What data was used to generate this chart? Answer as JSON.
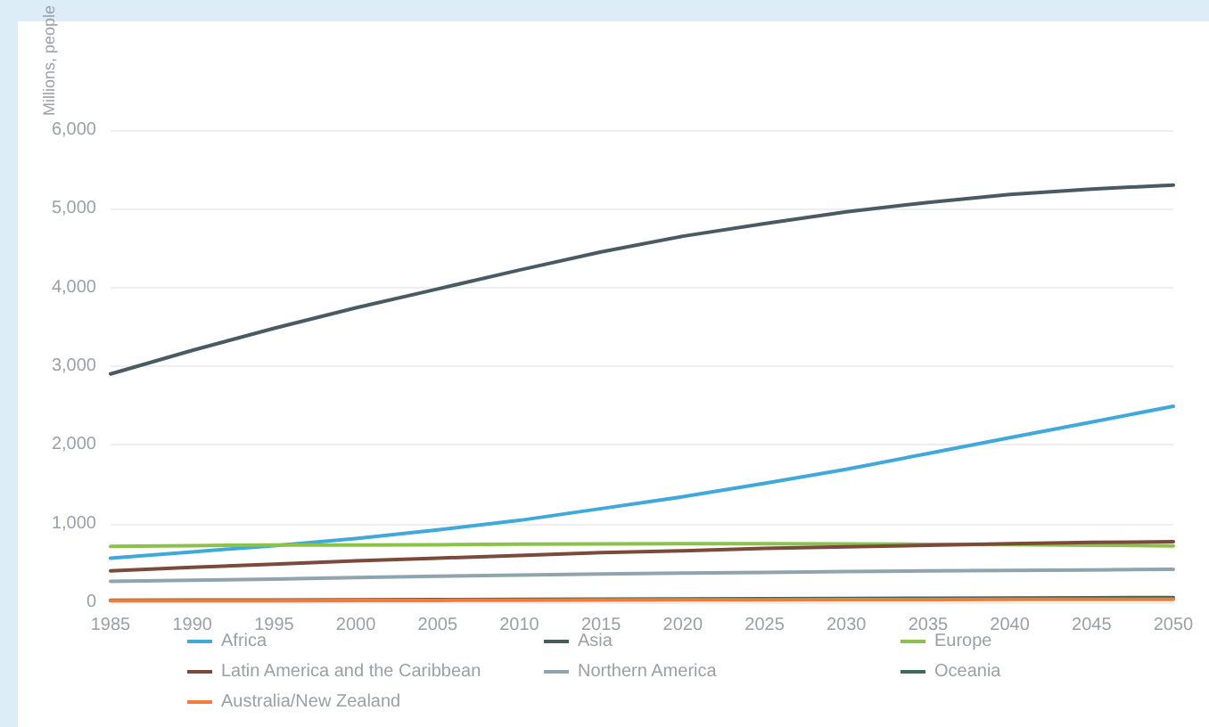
{
  "chart_data": {
    "type": "line",
    "ylabel": "Millions, people",
    "categories": [
      "1985",
      "1990",
      "1995",
      "2000",
      "2005",
      "2010",
      "2015",
      "2020",
      "2025",
      "2030",
      "2035",
      "2040",
      "2045",
      "2050"
    ],
    "series": [
      {
        "name": "Africa",
        "color": "#3fa9dc",
        "values": [
          560,
          640,
          720,
          810,
          920,
          1040,
          1190,
          1340,
          1510,
          1690,
          1890,
          2090,
          2290,
          2490
        ]
      },
      {
        "name": "Asia",
        "color": "#4a5a63",
        "values": [
          2900,
          3200,
          3480,
          3740,
          3980,
          4220,
          4450,
          4650,
          4810,
          4960,
          5080,
          5180,
          5250,
          5300
        ]
      },
      {
        "name": "Europe",
        "color": "#8bc34a",
        "values": [
          710,
          720,
          728,
          727,
          730,
          738,
          741,
          745,
          745,
          741,
          737,
          732,
          725,
          716
        ]
      },
      {
        "name": "Latin America and the Caribbean",
        "color": "#7b4a3a",
        "values": [
          400,
          445,
          485,
          525,
          560,
          595,
          630,
          655,
          685,
          705,
          725,
          745,
          760,
          770
        ]
      },
      {
        "name": "Northern America",
        "color": "#90a4ae",
        "values": [
          265,
          280,
          295,
          315,
          330,
          345,
          360,
          370,
          380,
          390,
          400,
          405,
          410,
          420
        ]
      },
      {
        "name": "Oceania",
        "color": "#3d6b5a",
        "values": [
          25,
          27,
          29,
          31,
          34,
          37,
          40,
          43,
          46,
          49,
          52,
          54,
          57,
          60
        ]
      },
      {
        "name": "Australia/New Zealand",
        "color": "#f07b3a",
        "values": [
          19,
          20,
          21,
          22,
          24,
          26,
          28,
          30,
          31,
          33,
          35,
          36,
          37,
          38
        ]
      }
    ],
    "ylim": [
      0,
      6000
    ],
    "yticks": [
      0,
      {
        "value": 1000,
        "label": "1,000"
      },
      {
        "value": 2000,
        "label": "2,000"
      },
      {
        "value": 3000,
        "label": "3,000"
      },
      {
        "value": 4000,
        "label": "4,000"
      },
      {
        "value": 5000,
        "label": "5,000"
      },
      {
        "value": 6000,
        "label": "6,000"
      }
    ],
    "grid": "y",
    "legend": "bottom",
    "marker": "none",
    "line_style": "solid"
  }
}
